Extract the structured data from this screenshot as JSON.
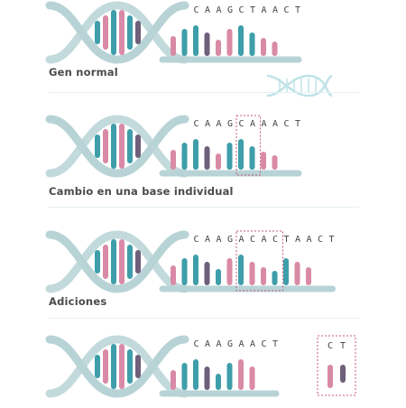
{
  "colors": {
    "backbone": "#b8d3d6",
    "teal": "#3e9ea9",
    "pink": "#d98aa6",
    "purple": "#6e5f7a",
    "dash": "#c4587a",
    "letters": "#444444",
    "caption": "#4a4a4a",
    "watermark": "#bfe3e6"
  },
  "panels": [
    {
      "id": "normal",
      "caption": "Gen normal",
      "sequence": [
        "C",
        "A",
        "A",
        "G",
        "C",
        "T",
        "A",
        "A",
        "C",
        "T"
      ],
      "highlight": null,
      "extra": null
    },
    {
      "id": "substitution",
      "caption": "Cambio en una base individual",
      "sequence": [
        "C",
        "A",
        "A",
        "G",
        "C",
        "A",
        "A",
        "A",
        "C",
        "T"
      ],
      "highlight": {
        "start": 4,
        "end": 5
      },
      "extra": null
    },
    {
      "id": "insertion",
      "caption": "Adiciones",
      "sequence": [
        "C",
        "A",
        "A",
        "G",
        "A",
        "C",
        "A",
        "C",
        "T",
        "A",
        "A",
        "C",
        "T"
      ],
      "highlight": {
        "start": 4,
        "end": 7
      },
      "extra": null
    },
    {
      "id": "deletion",
      "caption": "",
      "sequence": [
        "C",
        "A",
        "A",
        "G",
        "A",
        "A",
        "C",
        "T"
      ],
      "highlight": null,
      "extra": [
        "C",
        "T"
      ]
    }
  ]
}
